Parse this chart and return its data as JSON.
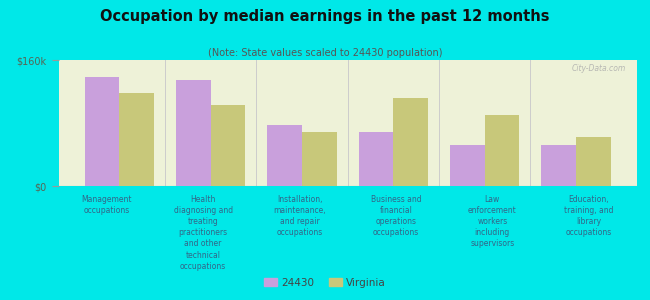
{
  "title": "Occupation by median earnings in the past 12 months",
  "subtitle": "(Note: State values scaled to 24430 population)",
  "background_color": "#00e8e8",
  "plot_bg": "#eef2d8",
  "categories": [
    "Management\noccupations",
    "Health\ndiagnosing and\ntreating\npractitioners\nand other\ntechnical\noccupations",
    "Installation,\nmaintenance,\nand repair\noccupations",
    "Business and\nfinancial\noperations\noccupations",
    "Law\nenforcement\nworkers\nincluding\nsupervisors",
    "Education,\ntraining, and\nlibrary\noccupations"
  ],
  "values_24430": [
    138000,
    135000,
    78000,
    68000,
    52000,
    52000
  ],
  "values_virginia": [
    118000,
    103000,
    68000,
    112000,
    90000,
    62000
  ],
  "color_24430": "#c9a0dc",
  "color_virginia": "#c8c87a",
  "ylim": [
    0,
    160000
  ],
  "yticks": [
    0,
    160000
  ],
  "ytick_labels": [
    "$0",
    "$160k"
  ],
  "legend_label_24430": "24430",
  "legend_label_virginia": "Virginia",
  "bar_width": 0.38,
  "watermark": "City-Data.com"
}
